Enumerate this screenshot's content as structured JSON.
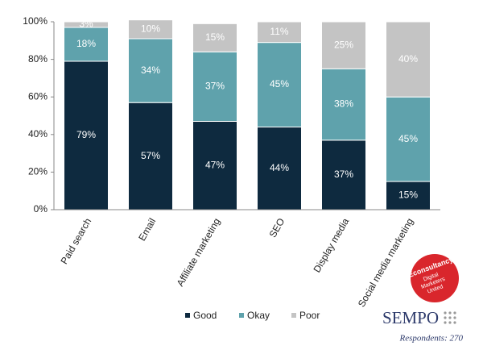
{
  "chart_data": {
    "type": "stacked_bar",
    "categories": [
      "Paid search",
      "Email",
      "Affiliate marketing",
      "SEO",
      "Display media",
      "Social media marketing"
    ],
    "series": [
      {
        "name": "Good",
        "color": "#0e2a3f",
        "values": [
          79,
          57,
          47,
          44,
          37,
          15
        ],
        "value_labels": [
          "79%",
          "57%",
          "47%",
          "44%",
          "37%",
          "15%"
        ]
      },
      {
        "name": "Okay",
        "color": "#5fa2ac",
        "values": [
          18,
          34,
          37,
          45,
          38,
          45
        ],
        "value_labels": [
          "18%",
          "34%",
          "37%",
          "45%",
          "38%",
          "45%"
        ]
      },
      {
        "name": "Poor",
        "color": "#c4c4c4",
        "values": [
          3,
          10,
          15,
          11,
          25,
          40
        ],
        "value_labels": [
          "3%",
          "10%",
          "15%",
          "11%",
          "25%",
          "40%"
        ]
      }
    ],
    "ylim": [
      0,
      100
    ],
    "yticks": [
      {
        "value": 0,
        "label": "0%"
      },
      {
        "value": 20,
        "label": "20%"
      },
      {
        "value": 40,
        "label": "40%"
      },
      {
        "value": 60,
        "label": "60%"
      },
      {
        "value": 80,
        "label": "80%"
      },
      {
        "value": 100,
        "label": "100%"
      }
    ],
    "legend": "bottom",
    "annotations": [
      "Respondents: 270",
      "SEMPO",
      "Econsultancy",
      "Digital",
      "Marketers",
      "United"
    ]
  }
}
